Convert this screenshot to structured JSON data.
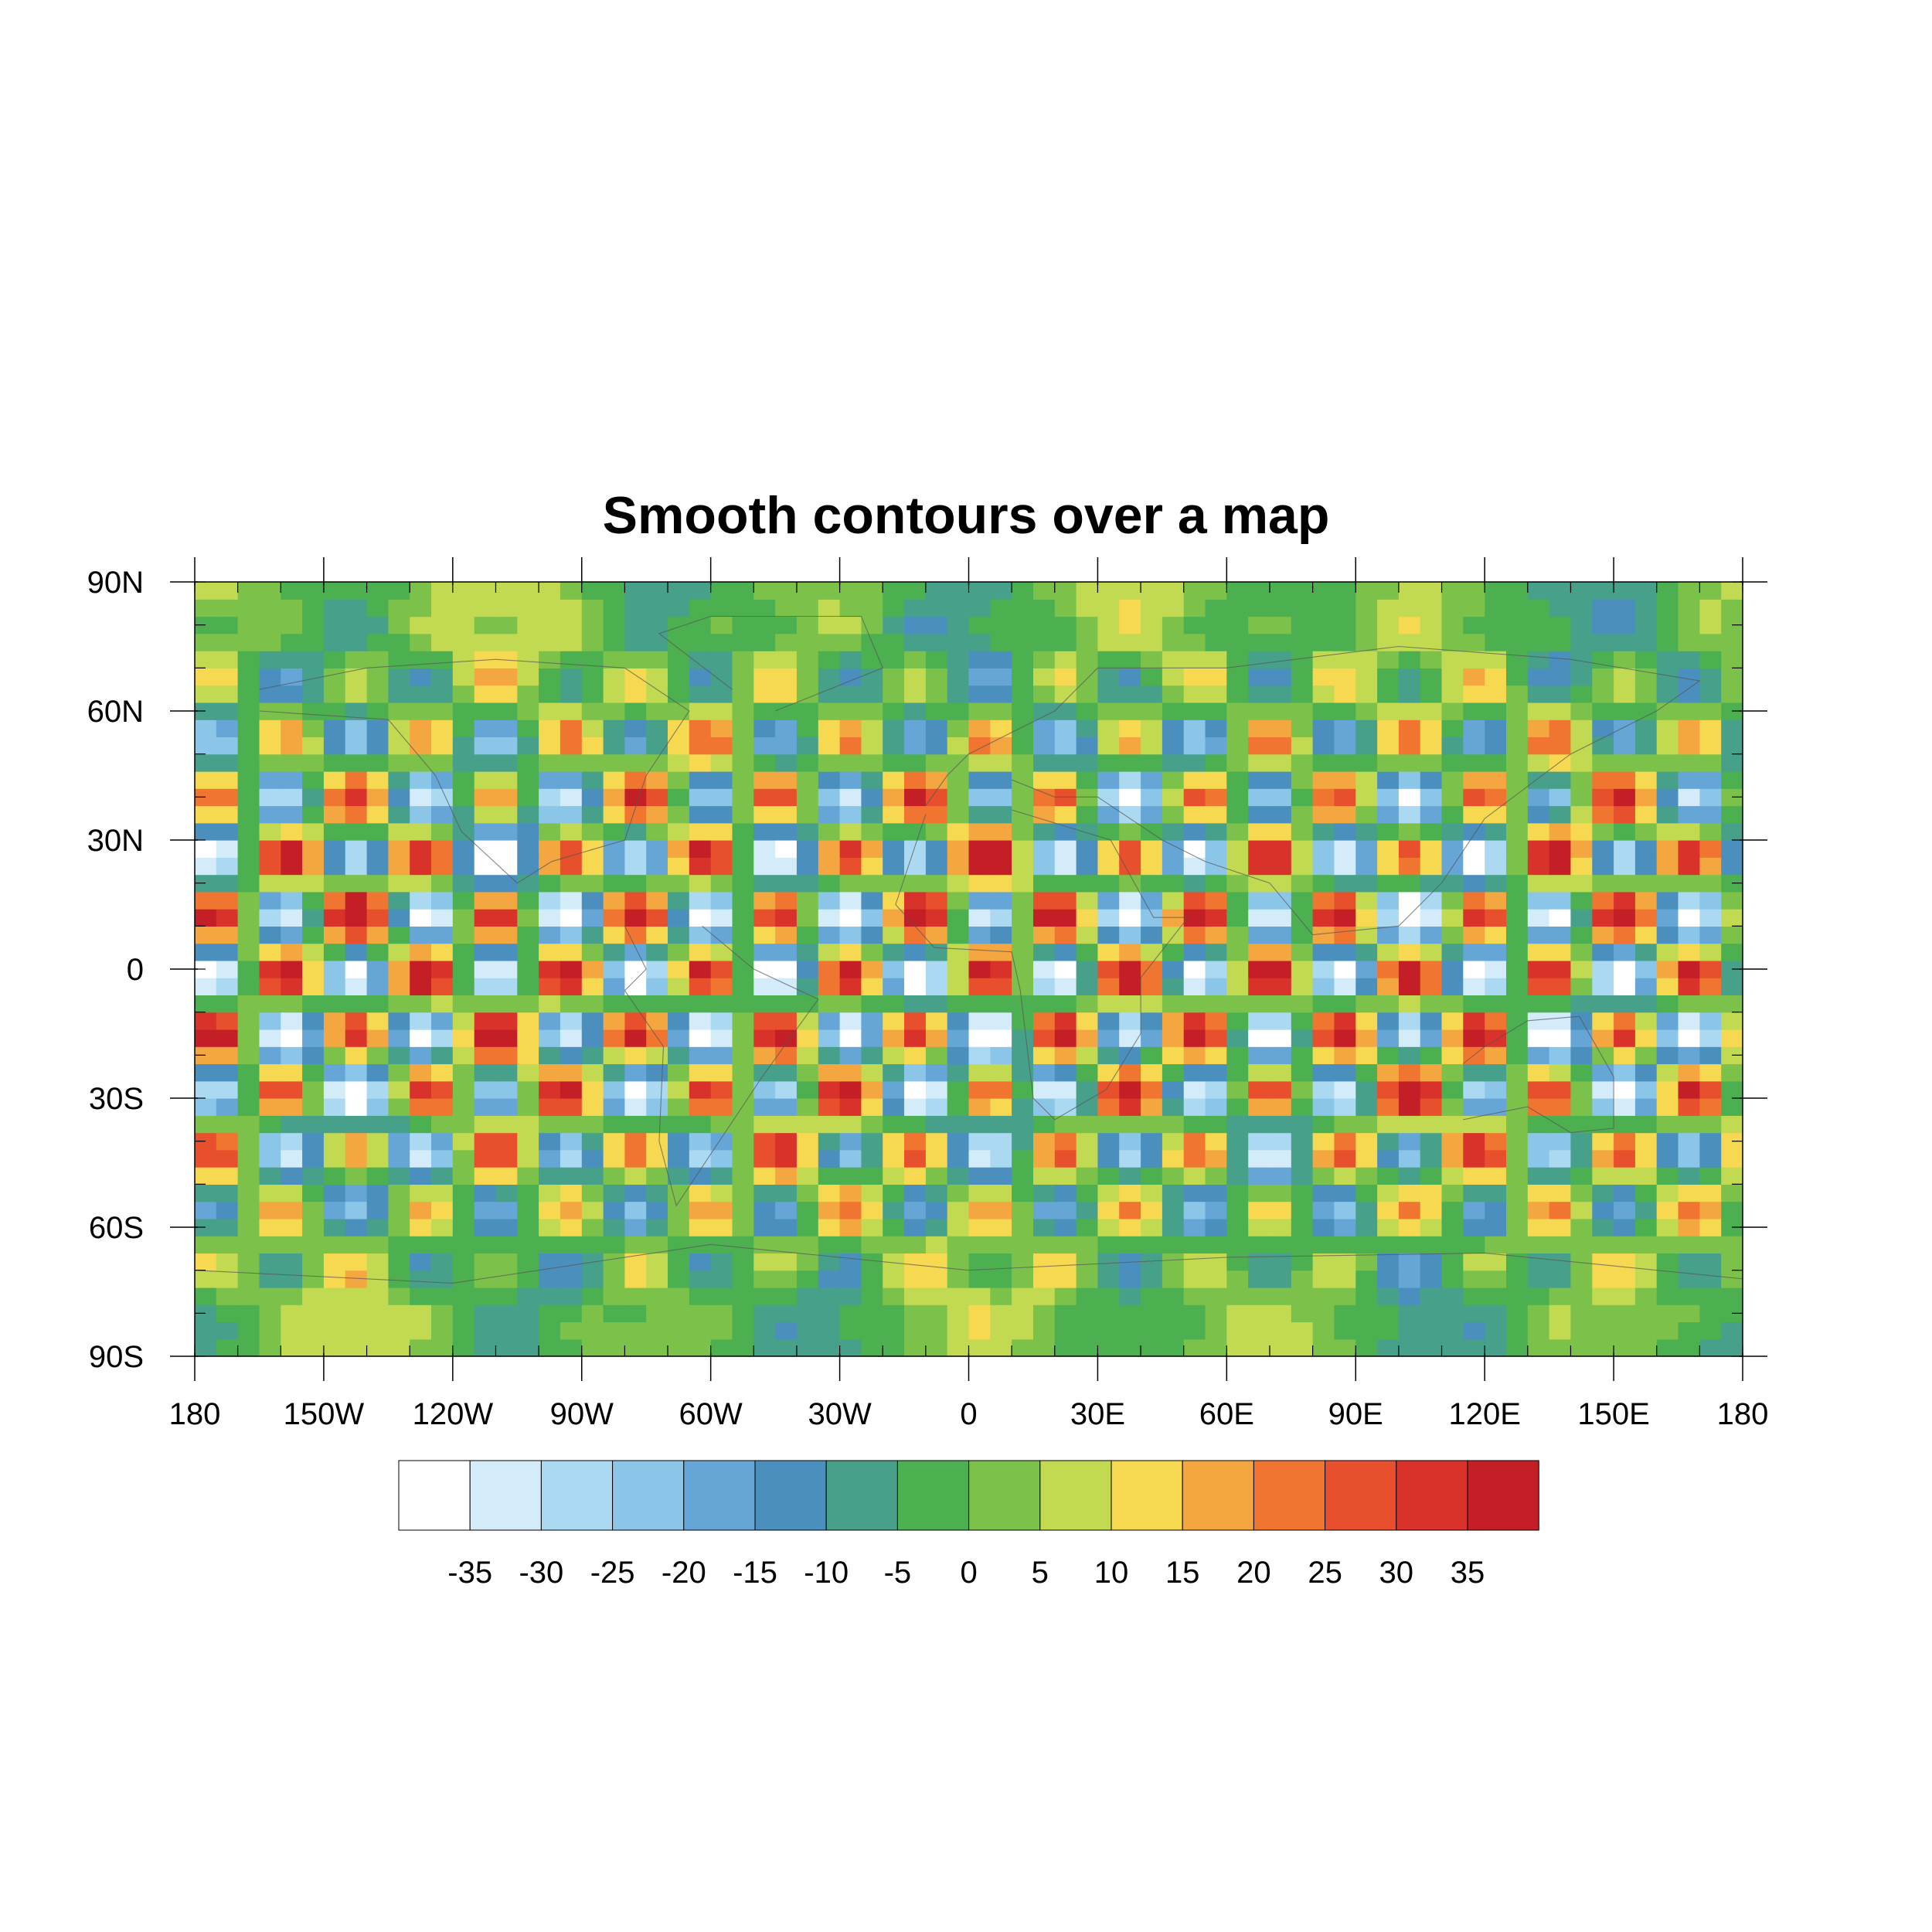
{
  "title": "Smooth contours over a map",
  "map": {
    "projection": "cylindrical-equidistant",
    "lon_range": [
      -180,
      180
    ],
    "lat_range": [
      -90,
      90
    ],
    "lon_ticks": [
      {
        "value": -180,
        "label": "180"
      },
      {
        "value": -150,
        "label": "150W"
      },
      {
        "value": -120,
        "label": "120W"
      },
      {
        "value": -90,
        "label": "90W"
      },
      {
        "value": -60,
        "label": "60W"
      },
      {
        "value": -30,
        "label": "30W"
      },
      {
        "value": 0,
        "label": "0"
      },
      {
        "value": 30,
        "label": "30E"
      },
      {
        "value": 60,
        "label": "60E"
      },
      {
        "value": 90,
        "label": "90E"
      },
      {
        "value": 120,
        "label": "120E"
      },
      {
        "value": 150,
        "label": "150E"
      },
      {
        "value": 180,
        "label": "180"
      }
    ],
    "lat_ticks": [
      {
        "value": 90,
        "label": "90N"
      },
      {
        "value": 60,
        "label": "60N"
      },
      {
        "value": 30,
        "label": "30N"
      },
      {
        "value": 0,
        "label": "0"
      },
      {
        "value": -30,
        "label": "30S"
      },
      {
        "value": -60,
        "label": "60S"
      },
      {
        "value": -90,
        "label": "90S"
      }
    ],
    "minor_tick_step_deg": 10
  },
  "chart_data": {
    "type": "heatmap",
    "title": "Smooth contours over a map",
    "xlabel": "",
    "ylabel": "",
    "contour_levels": [
      -35,
      -30,
      -25,
      -20,
      -15,
      -10,
      -5,
      0,
      5,
      10,
      15,
      20,
      25,
      30,
      35
    ],
    "colorbar": {
      "orientation": "horizontal",
      "labels": [
        "-35",
        "-30",
        "-25",
        "-20",
        "-15",
        "-10",
        "-5",
        "0",
        "5",
        "10",
        "15",
        "20",
        "25",
        "30",
        "35"
      ],
      "colors": [
        "#ffffff",
        "#d4ecf9",
        "#abd9f2",
        "#8bc6e9",
        "#65a6d6",
        "#4a8fbd",
        "#47a08a",
        "#4cb050",
        "#7cc24a",
        "#c2d952",
        "#f6d851",
        "#f4a640",
        "#f07530",
        "#e84f2c",
        "#d9322b",
        "#c41f27"
      ]
    },
    "coastlines": "overlaid (thin gray)"
  }
}
